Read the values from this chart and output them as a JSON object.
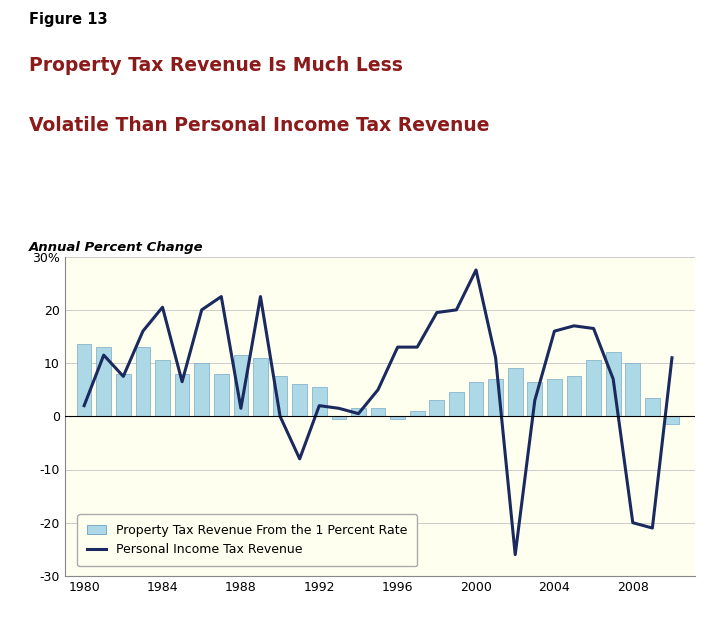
{
  "years": [
    1980,
    1981,
    1982,
    1983,
    1984,
    1985,
    1986,
    1987,
    1988,
    1989,
    1990,
    1991,
    1992,
    1993,
    1994,
    1995,
    1996,
    1997,
    1998,
    1999,
    2000,
    2001,
    2002,
    2003,
    2004,
    2005,
    2006,
    2007,
    2008,
    2009,
    2010
  ],
  "property_tax": [
    13.5,
    13.0,
    8.0,
    13.0,
    10.5,
    8.0,
    10.0,
    8.0,
    11.5,
    11.0,
    7.5,
    6.0,
    5.5,
    -0.5,
    1.5,
    1.5,
    -0.5,
    1.0,
    3.0,
    4.5,
    6.5,
    7.0,
    9.0,
    6.5,
    7.0,
    7.5,
    10.5,
    12.0,
    10.0,
    3.5,
    -1.5
  ],
  "personal_income_tax": [
    2.0,
    11.5,
    7.5,
    16.0,
    20.5,
    6.5,
    20.0,
    22.5,
    1.5,
    22.5,
    0.0,
    -8.0,
    2.0,
    1.5,
    0.5,
    5.0,
    13.0,
    13.0,
    19.5,
    20.0,
    27.5,
    11.0,
    -26.0,
    3.0,
    16.0,
    17.0,
    16.5,
    7.0,
    -20.0,
    -21.0,
    11.0
  ],
  "bar_color": "#add8e6",
  "bar_edge_color": "#7aaac8",
  "line_color": "#1a2a5e",
  "background_color": "#fffff0",
  "header_color": "#ffffff",
  "figure_title": "Figure 13",
  "chart_title_line1": "Property Tax Revenue Is Much Less",
  "chart_title_line2": "Volatile Than Personal Income Tax Revenue",
  "subtitle": "Annual Percent Change",
  "legend_label_bar": "Property Tax Revenue From the 1 Percent Rate",
  "legend_label_line": "Personal Income Tax Revenue",
  "ylim": [
    -30,
    30
  ],
  "yticks": [
    -30,
    -20,
    -10,
    0,
    10,
    20,
    30
  ],
  "xticks": [
    1980,
    1984,
    1988,
    1992,
    1996,
    2000,
    2004,
    2008
  ],
  "title_color": "#8b1a1a",
  "figure_title_color": "#000000",
  "grid_color": "#cccccc",
  "divider_color": "#333333"
}
